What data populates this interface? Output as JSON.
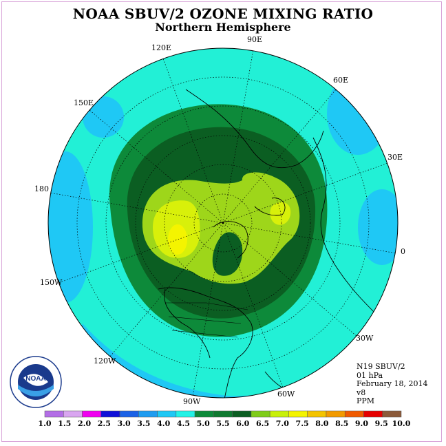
{
  "title": "NOAA SBUV/2 OZONE MIXING RATIO",
  "subtitle": "Northern Hemisphere",
  "longitude_labels": [
    "120E",
    "90E",
    "60E",
    "150E",
    "30E",
    "180",
    "0",
    "150W",
    "30W",
    "120W",
    "60W",
    "90W"
  ],
  "info": {
    "instrument": "N19 SBUV/2",
    "level": "01 hPa",
    "date": "February 18, 2014",
    "version": "v8",
    "units": "PPM"
  },
  "legend": {
    "labels": [
      "1.0",
      "1.5",
      "2.0",
      "2.5",
      "3.0",
      "3.5",
      "4.0",
      "4.5",
      "5.0",
      "5.5",
      "6.0",
      "6.5",
      "7.0",
      "7.5",
      "8.0",
      "8.5",
      "9.0",
      "9.5",
      "10.0"
    ],
    "colors": [
      "#b36ee6",
      "#d9a6f0",
      "#f000f0",
      "#1010d8",
      "#1c62e6",
      "#1f9cf0",
      "#1fc8f5",
      "#22f2e6",
      "#0d8a3a",
      "#0f7a30",
      "#0b5e22",
      "#7fcc1a",
      "#c8f00a",
      "#f4f400",
      "#f4c400",
      "#f29a00",
      "#f05a00",
      "#e60000",
      "#8b5a3a"
    ]
  },
  "logo": {
    "text": "NOAA"
  },
  "colors": {
    "background_field": "#22f0d6",
    "low_ring": "#1fc8f5",
    "mid_green": "#0d8a3a",
    "dark_green": "#0b5e22",
    "lime": "#9ed61a",
    "yellow_green": "#d8f00a",
    "yellow": "#f4f400"
  }
}
